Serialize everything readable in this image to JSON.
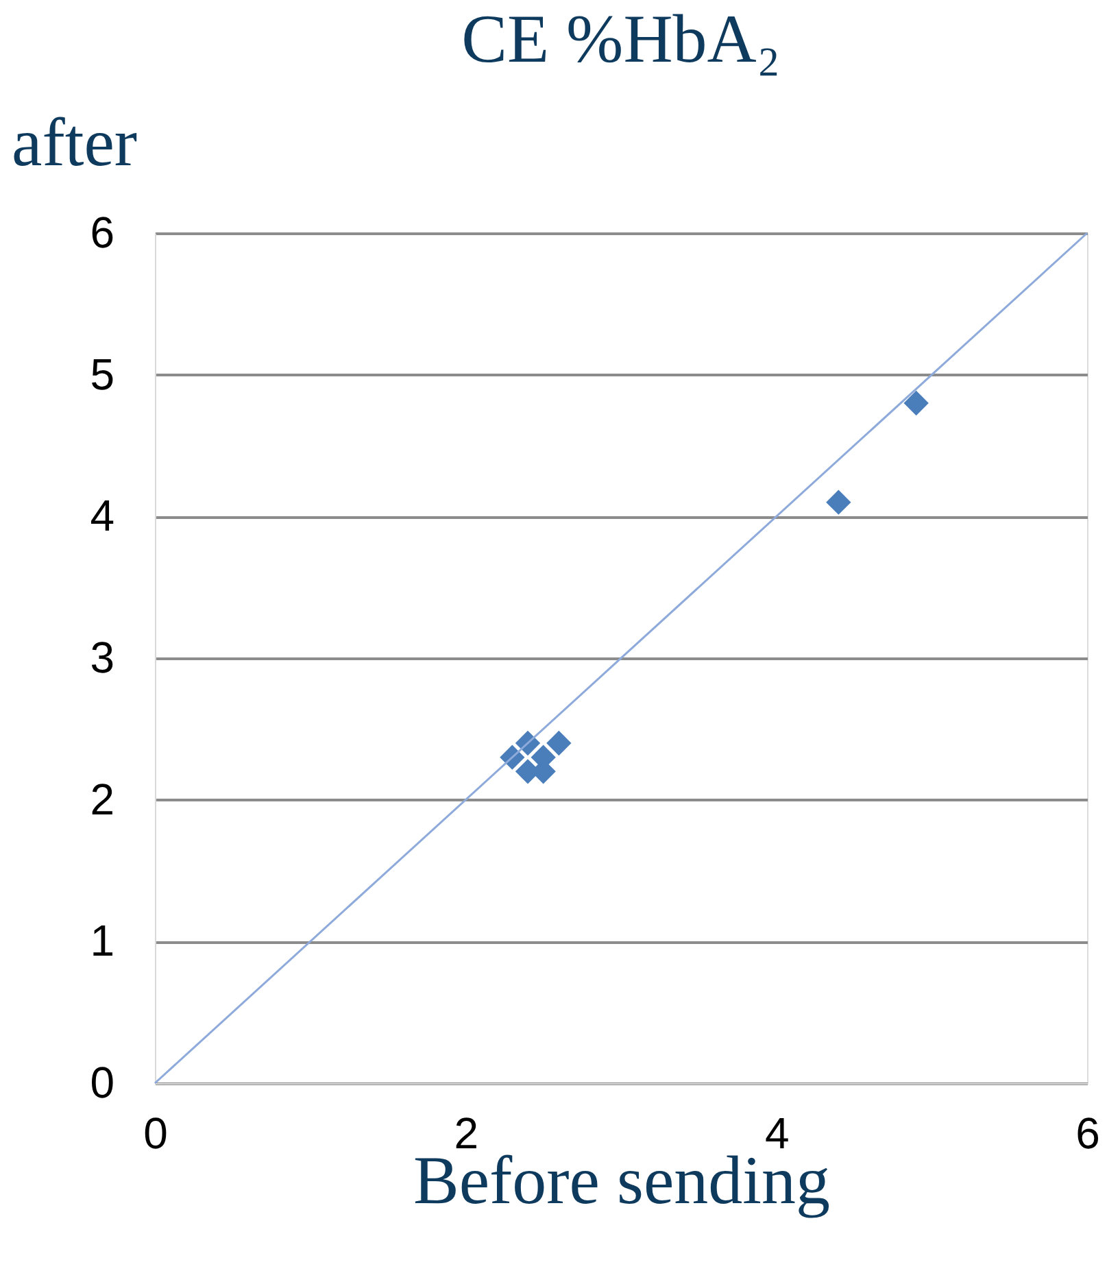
{
  "chart_data": {
    "type": "scatter",
    "title": "CE %HbA₂",
    "xlabel": "Before sending",
    "ylabel": "after",
    "xlim": [
      0,
      6
    ],
    "xticks": [
      0,
      2,
      4,
      6
    ],
    "ylim": [
      0,
      6
    ],
    "yticks": [
      0,
      1,
      2,
      3,
      4,
      5,
      6
    ],
    "grid": "y",
    "marker": "diamond",
    "series": [
      {
        "color": "#4a7ebb",
        "x": [
          2.3,
          2.4,
          2.4,
          2.5,
          2.5,
          2.6,
          4.4,
          4.9
        ],
        "values": [
          2.3,
          2.4,
          2.2,
          2.3,
          2.2,
          2.4,
          4.1,
          4.8
        ]
      },
      {
        "type": "line",
        "color": "#8eaadb",
        "x": [
          0,
          6
        ],
        "values": [
          0,
          6
        ],
        "marker": "none",
        "line_style": "solid"
      }
    ]
  }
}
